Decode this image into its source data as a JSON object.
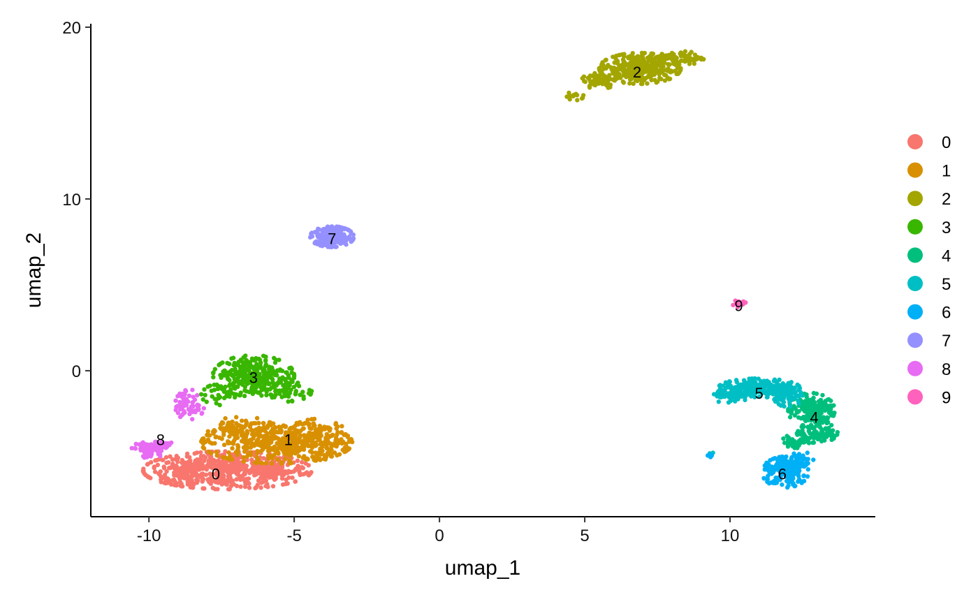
{
  "chart_data": {
    "type": "scatter",
    "title": "",
    "xlabel": "umap_1",
    "ylabel": "umap_2",
    "xlim": [
      -12,
      15
    ],
    "ylim": [
      -8.5,
      20.2
    ],
    "xticks": [
      -10,
      -5,
      0,
      5,
      10
    ],
    "yticks": [
      0,
      10,
      20
    ],
    "xtick_labels": [
      "-10",
      "-5",
      "0",
      "5",
      "10"
    ],
    "ytick_labels": [
      "0",
      "10",
      "20"
    ],
    "grid": false,
    "legend_position": "right",
    "series": [
      {
        "name": "0",
        "color": "#F8766D",
        "label_x": -7.7,
        "label_y": -6.0,
        "cloud": [
          {
            "cx": -7.3,
            "cy": -5.8,
            "rx": 2.9,
            "ry": 1.1,
            "n": 520
          },
          {
            "cx": -8.8,
            "cy": -5.9,
            "rx": 0.8,
            "ry": 0.8,
            "n": 60
          },
          {
            "cx": -5.6,
            "cy": -5.8,
            "rx": 0.9,
            "ry": 0.6,
            "n": 60
          }
        ]
      },
      {
        "name": "1",
        "color": "#D89000",
        "label_x": -5.2,
        "label_y": -4.0,
        "cloud": [
          {
            "cx": -5.6,
            "cy": -4.2,
            "rx": 2.6,
            "ry": 1.2,
            "n": 420
          },
          {
            "cx": -4.2,
            "cy": -4.0,
            "rx": 1.1,
            "ry": 1.2,
            "n": 120
          },
          {
            "cx": -6.8,
            "cy": -3.4,
            "rx": 1.3,
            "ry": 0.7,
            "n": 80
          }
        ]
      },
      {
        "name": "2",
        "color": "#A3A500",
        "label_x": 6.8,
        "label_y": 17.4,
        "cloud": [
          {
            "cx": 6.9,
            "cy": 17.6,
            "rx": 1.4,
            "ry": 0.9,
            "n": 360
          },
          {
            "cx": 8.3,
            "cy": 18.2,
            "rx": 0.8,
            "ry": 0.4,
            "n": 70
          },
          {
            "cx": 5.5,
            "cy": 16.9,
            "rx": 0.6,
            "ry": 0.5,
            "n": 60
          },
          {
            "cx": 4.7,
            "cy": 16.0,
            "rx": 0.35,
            "ry": 0.25,
            "n": 14
          }
        ]
      },
      {
        "name": "3",
        "color": "#39B600",
        "label_x": -6.4,
        "label_y": -0.4,
        "cloud": [
          {
            "cx": -6.4,
            "cy": -0.3,
            "rx": 1.4,
            "ry": 1.2,
            "n": 300
          },
          {
            "cx": -5.3,
            "cy": -1.2,
            "rx": 0.9,
            "ry": 0.6,
            "n": 50
          },
          {
            "cx": -7.6,
            "cy": -1.4,
            "rx": 0.6,
            "ry": 0.6,
            "n": 30
          }
        ]
      },
      {
        "name": "4",
        "color": "#00BF7D",
        "label_x": 12.9,
        "label_y": -2.7,
        "cloud": [
          {
            "cx": 12.8,
            "cy": -2.3,
            "rx": 0.8,
            "ry": 1.0,
            "n": 180
          },
          {
            "cx": 13.0,
            "cy": -3.6,
            "rx": 0.7,
            "ry": 0.6,
            "n": 90
          },
          {
            "cx": 12.3,
            "cy": -4.1,
            "rx": 0.5,
            "ry": 0.4,
            "n": 40
          }
        ]
      },
      {
        "name": "5",
        "color": "#00BFC4",
        "label_x": 11.0,
        "label_y": -1.3,
        "cloud": [
          {
            "cx": 11.0,
            "cy": -1.0,
            "rx": 1.4,
            "ry": 0.55,
            "n": 230
          },
          {
            "cx": 10.0,
            "cy": -1.5,
            "rx": 0.6,
            "ry": 0.4,
            "n": 50
          },
          {
            "cx": 12.0,
            "cy": -1.5,
            "rx": 0.5,
            "ry": 0.6,
            "n": 60
          },
          {
            "cx": 9.4,
            "cy": -4.8,
            "rx": 0.1,
            "ry": 0.1,
            "n": 2
          }
        ]
      },
      {
        "name": "6",
        "color": "#00B0F6",
        "label_x": 11.8,
        "label_y": -6.0,
        "cloud": [
          {
            "cx": 11.9,
            "cy": -5.9,
            "rx": 0.8,
            "ry": 0.9,
            "n": 180
          },
          {
            "cx": 12.4,
            "cy": -5.1,
            "rx": 0.5,
            "ry": 0.5,
            "n": 40
          },
          {
            "cx": 9.35,
            "cy": -4.95,
            "rx": 0.12,
            "ry": 0.1,
            "n": 6
          }
        ]
      },
      {
        "name": "7",
        "color": "#9590FF",
        "label_x": -3.7,
        "label_y": 7.7,
        "cloud": [
          {
            "cx": -3.7,
            "cy": 7.8,
            "rx": 0.75,
            "ry": 0.6,
            "n": 190
          }
        ]
      },
      {
        "name": "8",
        "color": "#E76BF3",
        "label_x": -9.6,
        "label_y": -4.0,
        "cloud": [
          {
            "cx": -10.0,
            "cy": -4.6,
            "rx": 0.6,
            "ry": 0.5,
            "n": 70
          },
          {
            "cx": -8.6,
            "cy": -2.0,
            "rx": 0.5,
            "ry": 0.9,
            "n": 60
          },
          {
            "cx": -9.5,
            "cy": -4.3,
            "rx": 0.4,
            "ry": 0.3,
            "n": 20
          }
        ]
      },
      {
        "name": "9",
        "color": "#FF62BC",
        "label_x": 10.3,
        "label_y": 3.8,
        "cloud": [
          {
            "cx": 10.3,
            "cy": 3.9,
            "rx": 0.25,
            "ry": 0.2,
            "n": 24
          }
        ]
      }
    ]
  }
}
